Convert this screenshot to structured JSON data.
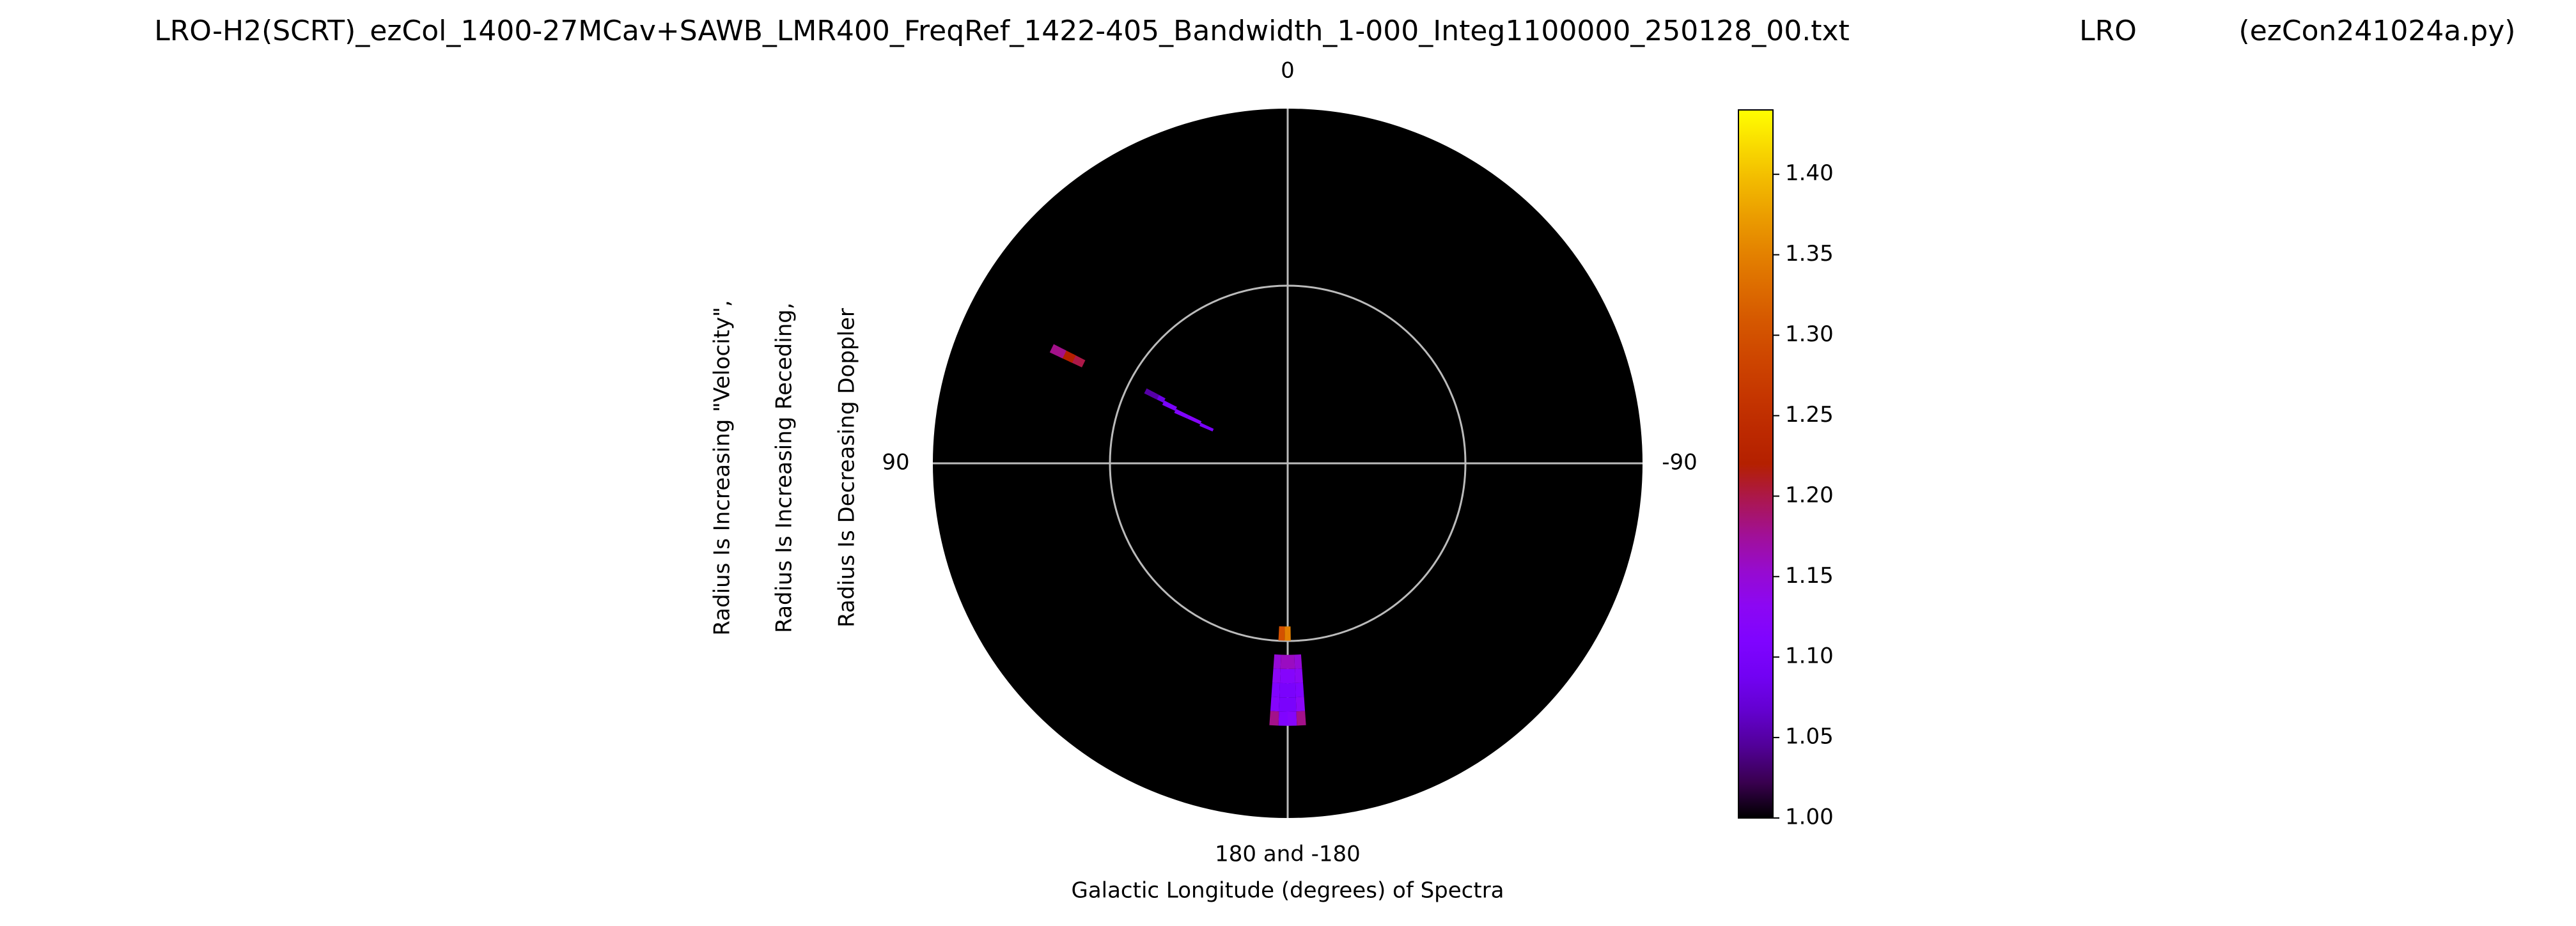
{
  "chart_data": {
    "type": "polar-heatmap",
    "title": [
      "LRO-H2(SCRT)_ezCol_1400-27MCav+SAWB_LMR400_FreqRef_1422-405_Bandwidth_1-000_Integ1100000_250128_00.txt",
      "LRO",
      "(ezCon241024a.py)"
    ],
    "xlabel": "Galactic Longitude (degrees) of Spectra",
    "ylabel": [
      "Radius Is Increasing \"Velocity\",",
      "Radius Is Increasing Receding,",
      "Radius Is Decreasing Doppler"
    ],
    "thetaticks": [
      0,
      90,
      {
        "value": 180,
        "label": "180 and -180"
      },
      -90
    ],
    "rlim": [
      0,
      1
    ],
    "colormap": "gnuplot",
    "clim": [
      1.0,
      1.44
    ],
    "cticks": [
      {
        "value": 1.0,
        "label": "1.00"
      },
      {
        "value": 1.05,
        "label": "1.05"
      },
      {
        "value": 1.1,
        "label": "1.10"
      },
      {
        "value": 1.15,
        "label": "1.15"
      },
      {
        "value": 1.2,
        "label": "1.20"
      },
      {
        "value": 1.25,
        "label": "1.25"
      },
      {
        "value": 1.3,
        "label": "1.30"
      },
      {
        "value": 1.35,
        "label": "1.35"
      },
      {
        "value": 1.4,
        "label": "1.40"
      }
    ],
    "points": {
      "theta": [
        64,
        64,
        64,
        63,
        64,
        65,
        65,
        66,
        63,
        180,
        178,
        177,
        179,
        181,
        183,
        177,
        179,
        181,
        183,
        177,
        179,
        181,
        183,
        177,
        179,
        181,
        183,
        177,
        179,
        181,
        183
      ],
      "r": [
        0.66,
        0.69,
        0.72,
        0.41,
        0.37,
        0.33,
        0.29,
        0.25,
        0.43,
        0.48,
        0.48,
        0.56,
        0.56,
        0.56,
        0.56,
        0.6,
        0.6,
        0.6,
        0.6,
        0.64,
        0.64,
        0.64,
        0.64,
        0.68,
        0.68,
        0.68,
        0.68,
        0.72,
        0.72,
        0.72,
        0.72
      ],
      "value": [
        1.2,
        1.22,
        1.18,
        1.08,
        1.1,
        1.11,
        1.12,
        1.1,
        1.05,
        1.35,
        1.3,
        1.15,
        1.16,
        1.16,
        1.15,
        1.13,
        1.12,
        1.12,
        1.13,
        1.11,
        1.1,
        1.1,
        1.11,
        1.12,
        1.1,
        1.1,
        1.13,
        1.18,
        1.11,
        1.12,
        1.18
      ]
    }
  }
}
